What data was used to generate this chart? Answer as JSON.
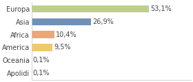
{
  "categories": [
    "Europa",
    "Asia",
    "Africa",
    "America",
    "Oceania",
    "Apolidi"
  ],
  "values": [
    53.1,
    26.9,
    10.4,
    9.5,
    0.1,
    0.1
  ],
  "labels": [
    "53,1%",
    "26,9%",
    "10,4%",
    "9,5%",
    "0,1%",
    "0,1%"
  ],
  "bar_colors": [
    "#bccf8e",
    "#7090b8",
    "#e8a87c",
    "#f0c96e",
    "#cccccc",
    "#cccccc"
  ],
  "background_color": "#ffffff",
  "label_fontsize": 7.0,
  "tick_fontsize": 7.0,
  "xlim": [
    0,
    72
  ],
  "bar_height": 0.55
}
